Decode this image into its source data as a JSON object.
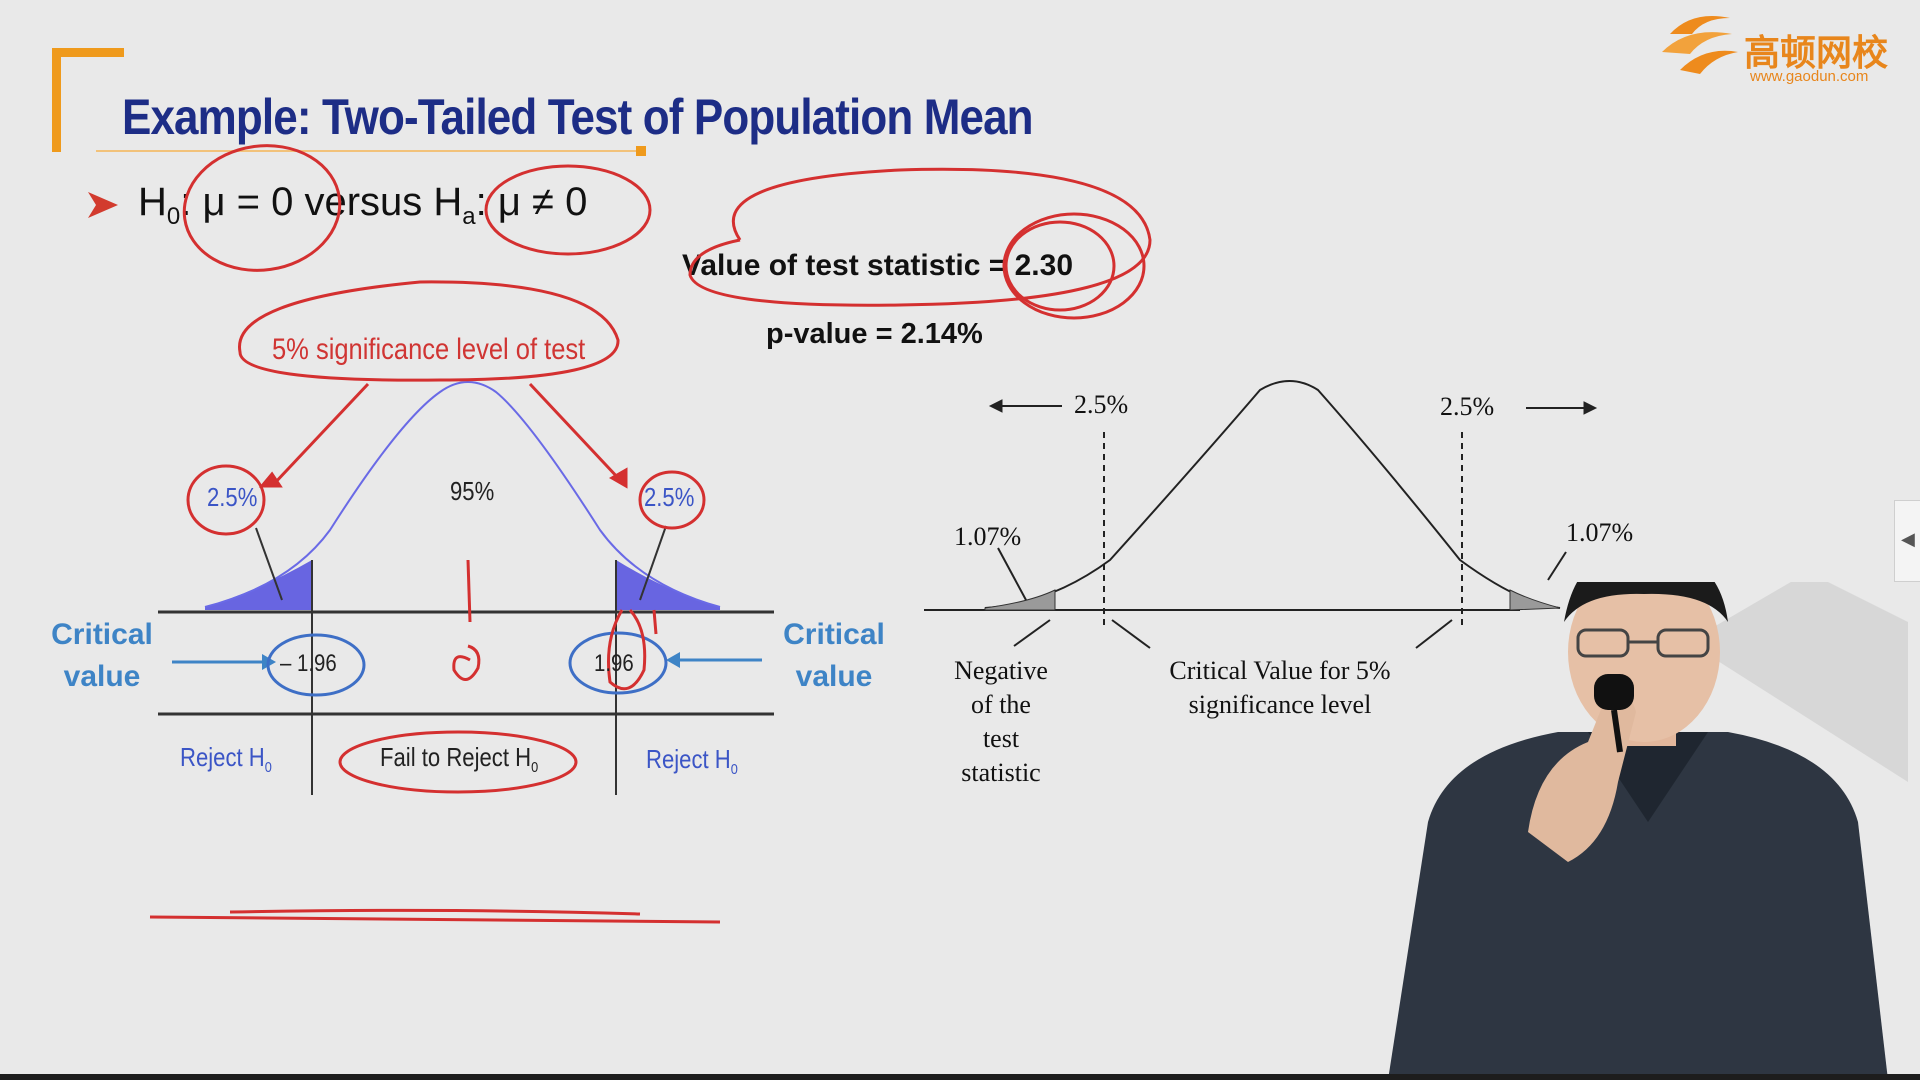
{
  "slide": {
    "title": "Example: Two-Tailed Test of Population Mean",
    "hypothesis_h": "H",
    "hypothesis_sub0": "0",
    "hypothesis_mid": ": μ = 0 versus H",
    "hypothesis_suba": "a",
    "hypothesis_end": ": μ ≠  0",
    "test_stat_label": "Value of test statistic = 2.30",
    "p_value_label": "p-value = 2.14%"
  },
  "logo": {
    "name": "高顿网校",
    "url": "www.gaodun.com"
  },
  "left_diagram": {
    "significance_label": "5% significance level of test",
    "tail_left": "2.5%",
    "center": "95%",
    "tail_right": "2.5%",
    "crit_left_value": "– 1.96",
    "crit_right_value": "1.96",
    "critical_label_line1": "Critical",
    "critical_label_line2": "value",
    "reject_left": "Reject H",
    "reject_right": "Reject H",
    "fail_to_reject": "Fail to  Reject H",
    "h_sub": "0"
  },
  "right_diagram": {
    "tail_left": "2.5%",
    "tail_right": "2.5%",
    "area_left": "1.07%",
    "area_right": "1.07%",
    "negative_stat_line1": "Negative",
    "negative_stat_line2": "of the",
    "negative_stat_line3": "test",
    "negative_stat_line4": "statistic",
    "critical_value_line1": "Critical Value for 5%",
    "critical_value_line2": "significance level"
  },
  "colors": {
    "title": "#1d2d86",
    "accent_orange": "#ef9a1c",
    "annotation_red": "#d43030",
    "critical_blue": "#3e84c6",
    "shade_blue": "#5a57e0"
  }
}
